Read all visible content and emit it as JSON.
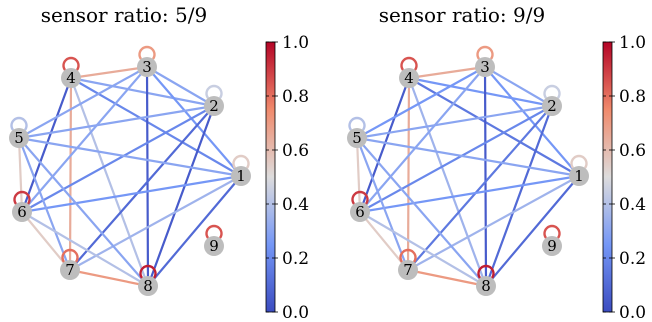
{
  "chart_data": [
    {
      "type": "network",
      "title": "sensor ratio: 5/9",
      "nodes": [
        "1",
        "2",
        "3",
        "4",
        "5",
        "6",
        "7",
        "8",
        "9"
      ],
      "edges": [
        {
          "source": "4",
          "target": "3",
          "weight": 0.65
        },
        {
          "source": "4",
          "target": "7",
          "weight": 0.65
        },
        {
          "source": "7",
          "target": "8",
          "weight": 0.7
        },
        {
          "source": "6",
          "target": "7",
          "weight": 0.55
        },
        {
          "source": "5",
          "target": "6",
          "weight": 0.55
        },
        {
          "source": "4",
          "target": "1",
          "weight": 0.2
        },
        {
          "source": "4",
          "target": "2",
          "weight": 0.3
        },
        {
          "source": "4",
          "target": "6",
          "weight": 0.05
        },
        {
          "source": "4",
          "target": "8",
          "weight": 0.4
        },
        {
          "source": "3",
          "target": "2",
          "weight": 0.3
        },
        {
          "source": "3",
          "target": "5",
          "weight": 0.3
        },
        {
          "source": "3",
          "target": "6",
          "weight": 0.3
        },
        {
          "source": "3",
          "target": "8",
          "weight": 0.05
        },
        {
          "source": "3",
          "target": "1",
          "weight": 0.25
        },
        {
          "source": "2",
          "target": "5",
          "weight": 0.3
        },
        {
          "source": "2",
          "target": "7",
          "weight": 0.1
        },
        {
          "source": "2",
          "target": "6",
          "weight": 0.2
        },
        {
          "source": "2",
          "target": "8",
          "weight": 0.05
        },
        {
          "source": "1",
          "target": "5",
          "weight": 0.3
        },
        {
          "source": "1",
          "target": "6",
          "weight": 0.25
        },
        {
          "source": "1",
          "target": "7",
          "weight": 0.35
        },
        {
          "source": "1",
          "target": "8",
          "weight": 0.1
        },
        {
          "source": "5",
          "target": "7",
          "weight": 0.3
        },
        {
          "source": "5",
          "target": "8",
          "weight": 0.3
        },
        {
          "source": "6",
          "target": "8",
          "weight": 0.4
        }
      ],
      "self_loops": [
        {
          "node": "1",
          "weight": 0.55
        },
        {
          "node": "2",
          "weight": 0.45
        },
        {
          "node": "3",
          "weight": 0.7
        },
        {
          "node": "4",
          "weight": 0.85
        },
        {
          "node": "5",
          "weight": 0.4
        },
        {
          "node": "6",
          "weight": 0.9
        },
        {
          "node": "7",
          "weight": 0.8
        },
        {
          "node": "8",
          "weight": 0.95
        },
        {
          "node": "9",
          "weight": 0.85
        }
      ],
      "colorbar": {
        "range": [
          0.0,
          1.0
        ],
        "ticks": [
          "0.0",
          "0.2",
          "0.4",
          "0.6",
          "0.8",
          "1.0"
        ],
        "colormap": "coolwarm"
      }
    },
    {
      "type": "network",
      "title": "sensor ratio: 9/9",
      "nodes": [
        "1",
        "2",
        "3",
        "4",
        "5",
        "6",
        "7",
        "8",
        "9"
      ],
      "edges": [
        {
          "source": "4",
          "target": "3",
          "weight": 0.65
        },
        {
          "source": "4",
          "target": "7",
          "weight": 0.65
        },
        {
          "source": "7",
          "target": "8",
          "weight": 0.7
        },
        {
          "source": "6",
          "target": "7",
          "weight": 0.55
        },
        {
          "source": "5",
          "target": "6",
          "weight": 0.55
        },
        {
          "source": "4",
          "target": "1",
          "weight": 0.15
        },
        {
          "source": "4",
          "target": "2",
          "weight": 0.25
        },
        {
          "source": "4",
          "target": "6",
          "weight": 0.05
        },
        {
          "source": "4",
          "target": "8",
          "weight": 0.35
        },
        {
          "source": "3",
          "target": "2",
          "weight": 0.3
        },
        {
          "source": "3",
          "target": "5",
          "weight": 0.25
        },
        {
          "source": "3",
          "target": "6",
          "weight": 0.3
        },
        {
          "source": "3",
          "target": "8",
          "weight": 0.05
        },
        {
          "source": "3",
          "target": "1",
          "weight": 0.25
        },
        {
          "source": "2",
          "target": "5",
          "weight": 0.3
        },
        {
          "source": "2",
          "target": "7",
          "weight": 0.15
        },
        {
          "source": "2",
          "target": "6",
          "weight": 0.2
        },
        {
          "source": "2",
          "target": "8",
          "weight": 0.1
        },
        {
          "source": "1",
          "target": "5",
          "weight": 0.3
        },
        {
          "source": "1",
          "target": "6",
          "weight": 0.25
        },
        {
          "source": "1",
          "target": "7",
          "weight": 0.35
        },
        {
          "source": "1",
          "target": "8",
          "weight": 0.1
        },
        {
          "source": "5",
          "target": "7",
          "weight": 0.3
        },
        {
          "source": "5",
          "target": "8",
          "weight": 0.3
        },
        {
          "source": "6",
          "target": "8",
          "weight": 0.4
        }
      ],
      "self_loops": [
        {
          "node": "1",
          "weight": 0.55
        },
        {
          "node": "2",
          "weight": 0.45
        },
        {
          "node": "3",
          "weight": 0.7
        },
        {
          "node": "4",
          "weight": 0.85
        },
        {
          "node": "5",
          "weight": 0.4
        },
        {
          "node": "6",
          "weight": 0.9
        },
        {
          "node": "7",
          "weight": 0.8
        },
        {
          "node": "8",
          "weight": 0.95
        },
        {
          "node": "9",
          "weight": 0.85
        }
      ],
      "colorbar": {
        "range": [
          0.0,
          1.0
        ],
        "ticks": [
          "0.0",
          "0.2",
          "0.4",
          "0.6",
          "0.8",
          "1.0"
        ],
        "colormap": "coolwarm"
      }
    }
  ]
}
